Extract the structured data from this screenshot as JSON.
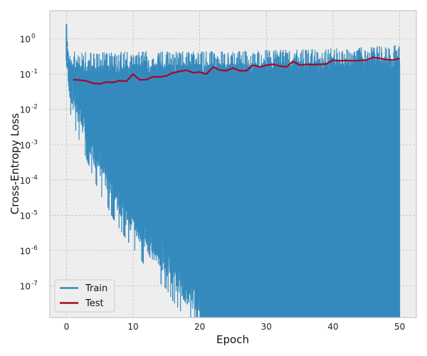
{
  "chart_data": {
    "type": "line",
    "title": "",
    "xlabel": "Epoch",
    "ylabel": "Cross-Entropy Loss",
    "xlim": [
      -2.5,
      52.5
    ],
    "ylim_log10": [
      -7.9,
      0.8
    ],
    "yscale": "log",
    "x_ticks": [
      0,
      10,
      20,
      30,
      40,
      50
    ],
    "x_tick_labels": [
      "0",
      "10",
      "20",
      "30",
      "40",
      "50"
    ],
    "y_tick_exps": [
      0,
      -1,
      -2,
      -3,
      -4,
      -5,
      -6,
      -7
    ],
    "y_tick_labels": [
      "10",
      "10",
      "10",
      "10",
      "10",
      "10",
      "10",
      "10"
    ],
    "y_tick_sups": [
      "0",
      "-1",
      "-2",
      "-3",
      "-4",
      "-5",
      "-6",
      "-7"
    ],
    "grid": true,
    "legend_position": "lower-left",
    "series": [
      {
        "name": "Train",
        "color": "#348abd",
        "style": "noisy-band",
        "upper_envelope": [
          [
            0,
            2.5
          ],
          [
            0.2,
            0.7
          ],
          [
            1,
            0.55
          ],
          [
            2,
            0.45
          ],
          [
            3,
            0.42
          ],
          [
            5,
            0.42
          ],
          [
            8,
            0.43
          ],
          [
            10,
            0.45
          ],
          [
            15,
            0.45
          ],
          [
            20,
            0.45
          ],
          [
            25,
            0.45
          ],
          [
            30,
            0.5
          ],
          [
            35,
            0.5
          ],
          [
            40,
            0.55
          ],
          [
            45,
            0.6
          ],
          [
            50,
            0.7
          ]
        ],
        "typical_upper": [
          [
            0.2,
            0.3
          ],
          [
            2,
            0.2
          ],
          [
            5,
            0.18
          ],
          [
            10,
            0.2
          ],
          [
            20,
            0.2
          ],
          [
            30,
            0.22
          ],
          [
            40,
            0.25
          ],
          [
            50,
            0.3
          ]
        ],
        "lower_envelope": [
          [
            0,
            0.3
          ],
          [
            0.3,
            0.03
          ],
          [
            1,
            0.01
          ],
          [
            2,
            0.003
          ],
          [
            3,
            0.001
          ],
          [
            4,
            0.0003
          ],
          [
            5,
            0.0001
          ],
          [
            6,
            5e-05
          ],
          [
            7,
            2e-05
          ],
          [
            8,
            1e-05
          ],
          [
            9,
            5e-06
          ],
          [
            10,
            3e-06
          ],
          [
            11,
            1.5e-06
          ],
          [
            12,
            8e-07
          ],
          [
            13,
            5e-07
          ],
          [
            14,
            3e-07
          ],
          [
            15,
            2e-07
          ],
          [
            16,
            9e-08
          ],
          [
            17,
            5e-08
          ],
          [
            18,
            3e-08
          ],
          [
            20,
            1.5e-08
          ]
        ]
      },
      {
        "name": "Test",
        "color": "#a60628",
        "style": "line",
        "x": [
          1,
          2,
          3,
          4,
          5,
          6,
          7,
          8,
          9,
          10,
          11,
          12,
          13,
          14,
          15,
          16,
          17,
          18,
          19,
          20,
          21,
          22,
          23,
          24,
          25,
          26,
          27,
          28,
          29,
          30,
          31,
          32,
          33,
          34,
          35,
          36,
          37,
          38,
          39,
          40,
          41,
          42,
          43,
          44,
          45,
          46,
          47,
          48,
          49,
          50
        ],
        "values": [
          0.07,
          0.068,
          0.064,
          0.055,
          0.053,
          0.06,
          0.058,
          0.066,
          0.063,
          0.1,
          0.069,
          0.07,
          0.085,
          0.083,
          0.09,
          0.11,
          0.12,
          0.13,
          0.11,
          0.115,
          0.1,
          0.16,
          0.13,
          0.125,
          0.15,
          0.125,
          0.125,
          0.18,
          0.16,
          0.18,
          0.19,
          0.17,
          0.16,
          0.23,
          0.18,
          0.19,
          0.185,
          0.19,
          0.195,
          0.25,
          0.24,
          0.245,
          0.24,
          0.245,
          0.25,
          0.3,
          0.28,
          0.26,
          0.25,
          0.28
        ]
      }
    ]
  }
}
